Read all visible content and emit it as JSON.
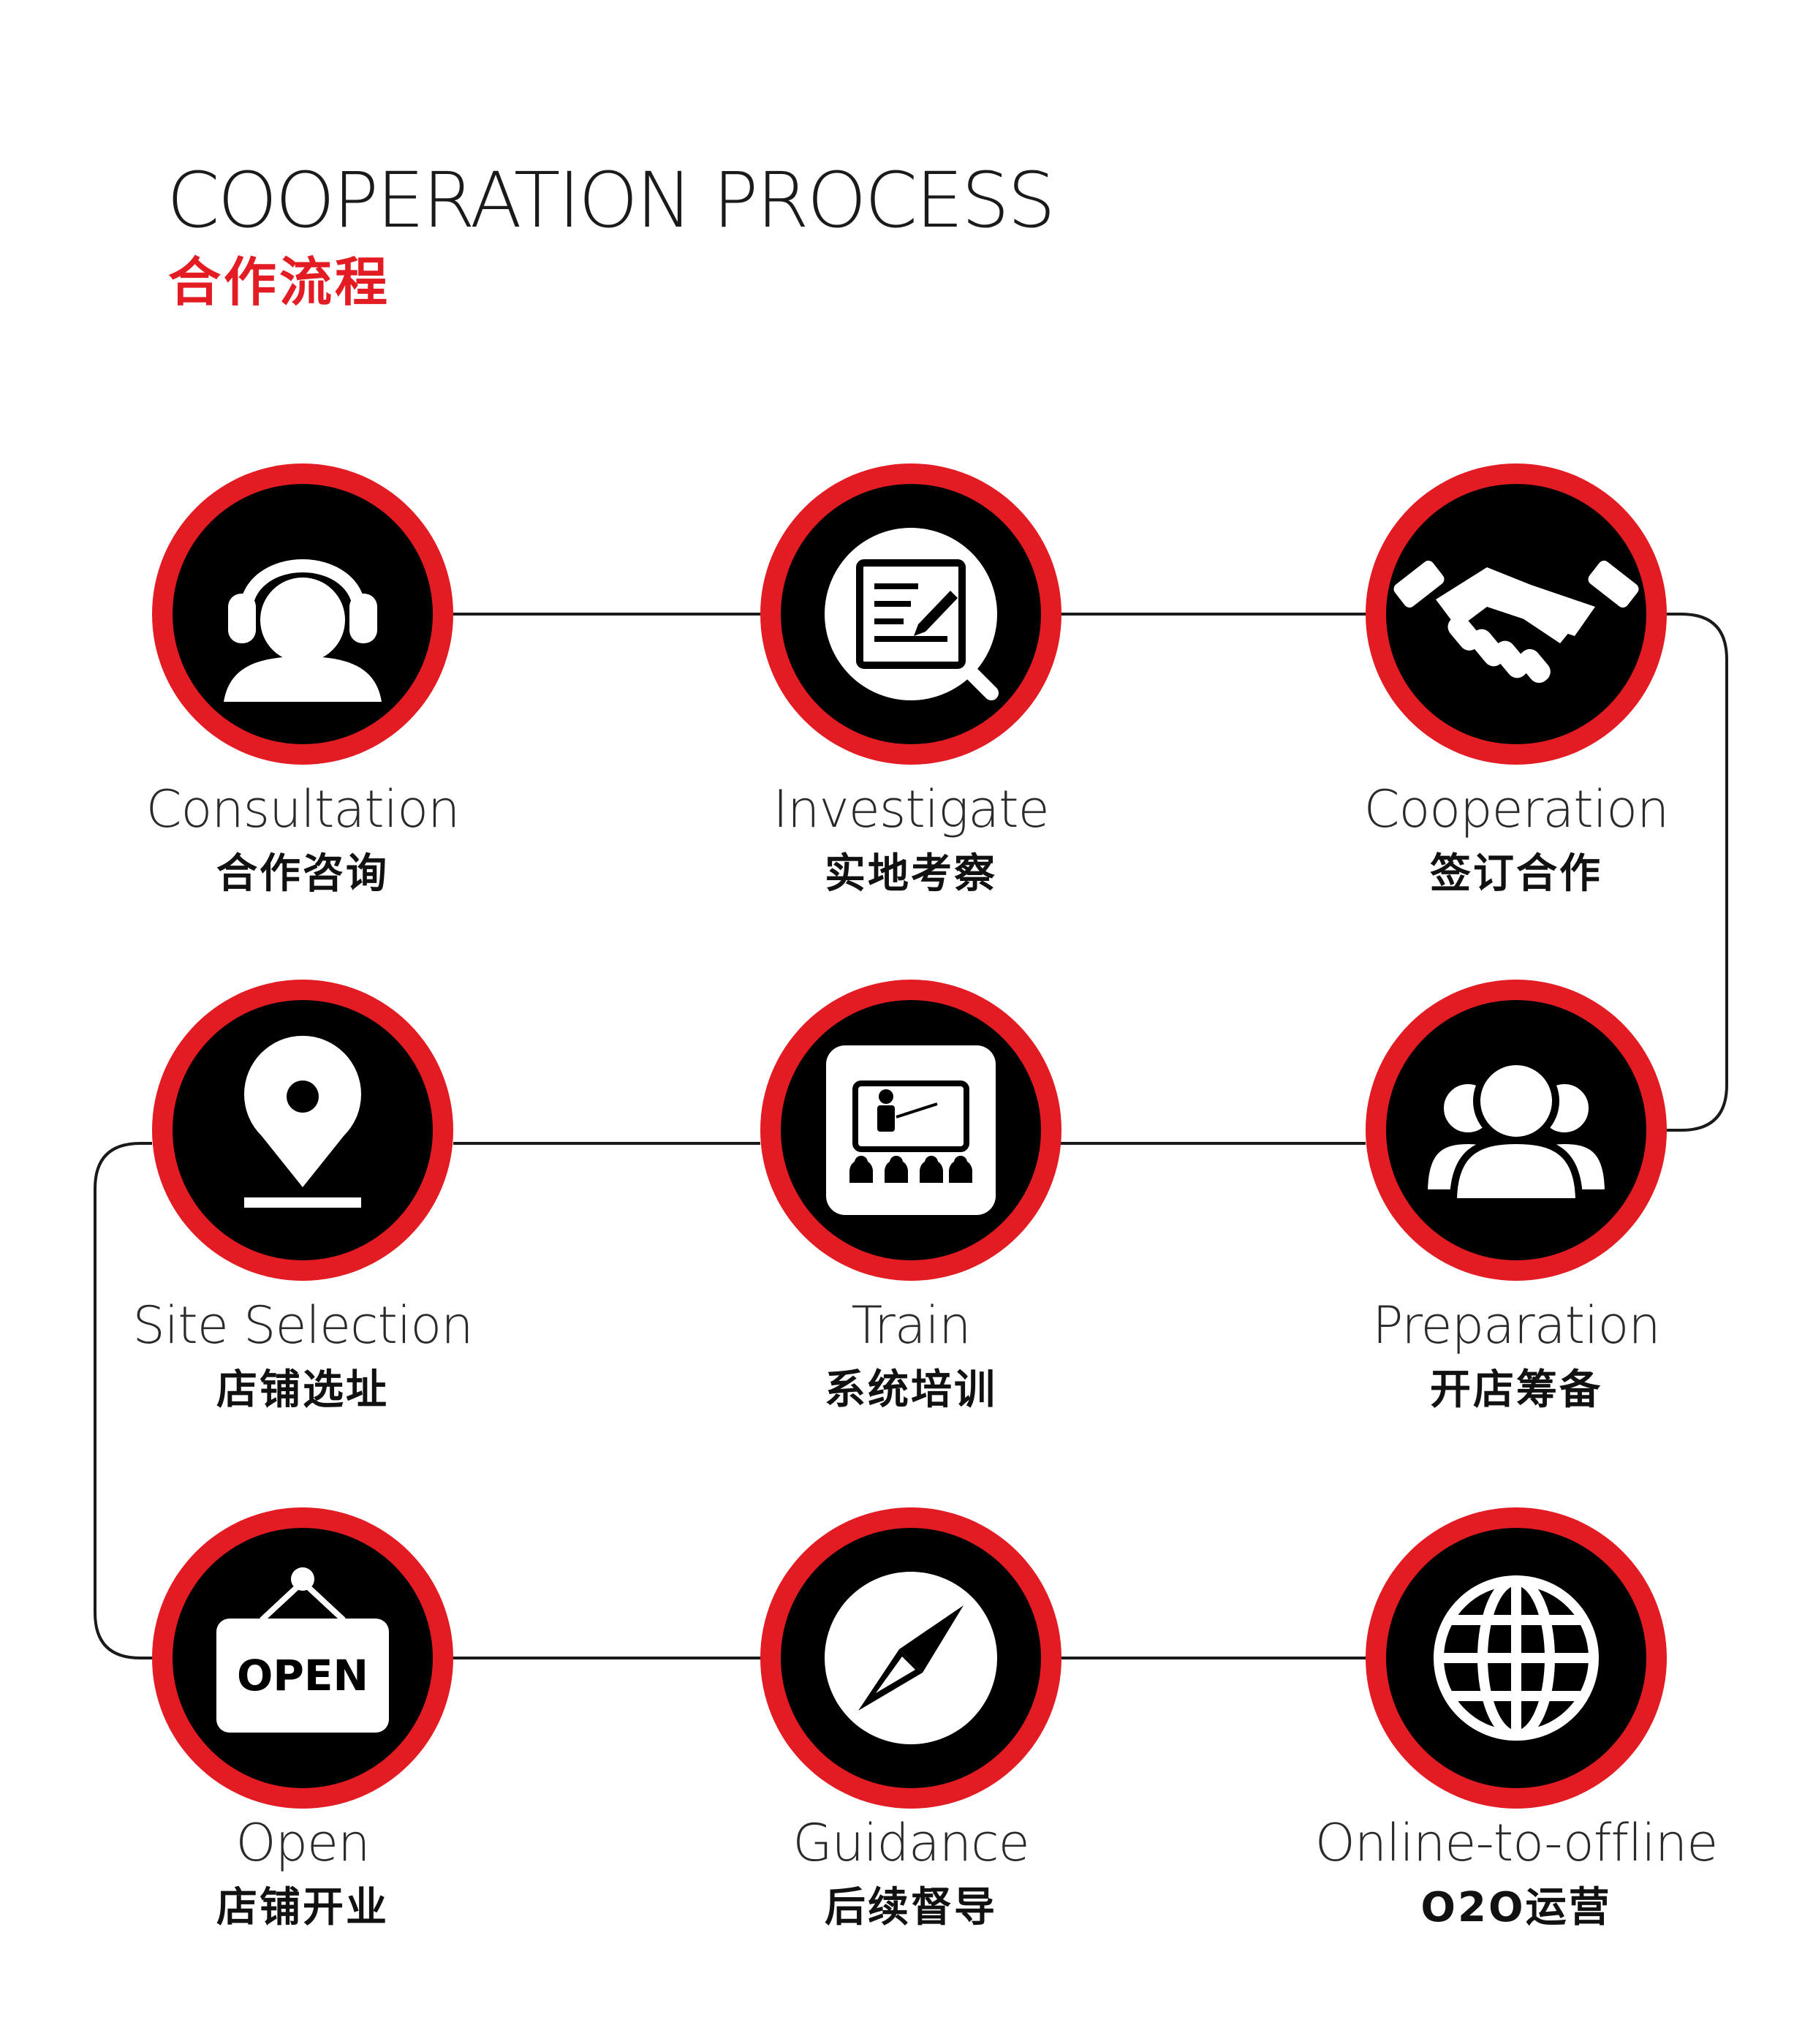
{
  "header": {
    "title_en": "COOPERATION PROCESS",
    "title_cn": "合作流程"
  },
  "colors": {
    "accent": "#e31b23",
    "icon_fill": "#000000",
    "icon_glyph": "#ffffff",
    "connector": "#1a1a1a"
  },
  "steps": [
    {
      "en": "Consultation",
      "cn": "合作咨询",
      "icon": "headset-user-icon"
    },
    {
      "en": "Investigate",
      "cn": "实地考察",
      "icon": "document-search-icon"
    },
    {
      "en": "Cooperation",
      "cn": "签订合作",
      "icon": "handshake-icon"
    },
    {
      "en": "Site Selection",
      "cn": "店铺选址",
      "icon": "location-pin-icon"
    },
    {
      "en": "Train",
      "cn": "系统培训",
      "icon": "presentation-board-icon"
    },
    {
      "en": "Preparation",
      "cn": "开店筹备",
      "icon": "user-group-icon"
    },
    {
      "en": "Open",
      "cn": "店铺开业",
      "icon": "open-sign-icon",
      "sign_text": "OPEN"
    },
    {
      "en": "Guidance",
      "cn": "后续督导",
      "icon": "compass-icon"
    },
    {
      "en": "Online-to-offline",
      "cn": "O2O运营",
      "icon": "globe-icon"
    }
  ]
}
